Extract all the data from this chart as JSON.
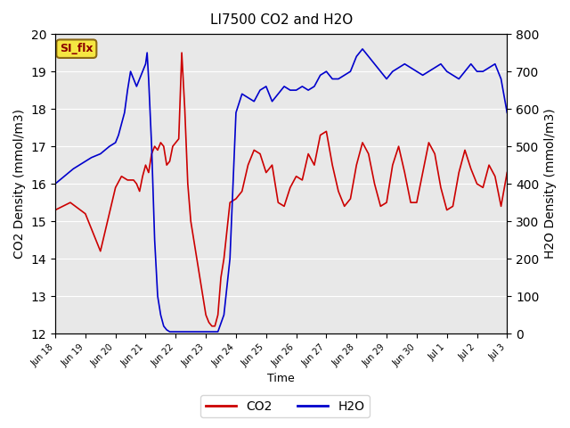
{
  "title": "LI7500 CO2 and H2O",
  "ylabel_left": "CO2 Density (mmol/m3)",
  "ylabel_right": "H2O Density (mmol/m3)",
  "xlabel": "Time",
  "ylim_left": [
    12.0,
    20.0
  ],
  "ylim_right": [
    0,
    800
  ],
  "annotation": "SI_flx",
  "bg_color": "#e8e8e8",
  "co2_color": "#cc0000",
  "h2o_color": "#0000cc",
  "legend_co2": "CO2",
  "legend_h2o": "H2O",
  "co2_data": {
    "x": [
      0,
      0.5,
      1.0,
      1.5,
      2.0,
      2.2,
      2.4,
      2.6,
      2.7,
      2.8,
      2.9,
      3.0,
      3.1,
      3.2,
      3.3,
      3.4,
      3.5,
      3.6,
      3.7,
      3.8,
      3.9,
      4.0,
      4.1,
      4.2,
      4.3,
      4.4,
      4.5,
      4.6,
      4.7,
      4.8,
      4.9,
      5.0,
      5.1,
      5.2,
      5.3,
      5.4,
      5.5,
      5.6,
      5.8,
      6.0,
      6.2,
      6.4,
      6.6,
      6.8,
      7.0,
      7.2,
      7.4,
      7.6,
      7.8,
      8.0,
      8.2,
      8.4,
      8.6,
      8.8,
      9.0,
      9.2,
      9.4,
      9.6,
      9.8,
      10.0,
      10.2,
      10.4,
      10.6,
      10.8,
      11.0,
      11.2,
      11.4,
      11.6,
      11.8,
      12.0,
      12.2,
      12.4,
      12.6,
      12.8,
      13.0,
      13.2,
      13.4,
      13.6,
      13.8,
      14.0,
      14.2,
      14.4,
      14.6,
      14.8,
      15.0
    ],
    "y": [
      15.3,
      15.5,
      15.2,
      14.2,
      15.9,
      16.2,
      16.1,
      16.1,
      16.0,
      15.8,
      16.2,
      16.5,
      16.3,
      16.8,
      17.0,
      16.9,
      17.1,
      17.0,
      16.5,
      16.6,
      17.0,
      17.1,
      17.2,
      19.5,
      18.0,
      16.0,
      15.0,
      14.5,
      14.0,
      13.5,
      13.0,
      12.5,
      12.3,
      12.2,
      12.2,
      12.5,
      13.5,
      14.0,
      15.5,
      15.6,
      15.8,
      16.5,
      16.9,
      16.8,
      16.3,
      16.5,
      15.5,
      15.4,
      15.9,
      16.2,
      16.1,
      16.8,
      16.5,
      17.3,
      17.4,
      16.5,
      15.8,
      15.4,
      15.6,
      16.5,
      17.1,
      16.8,
      16.0,
      15.4,
      15.5,
      16.5,
      17.0,
      16.3,
      15.5,
      15.5,
      16.3,
      17.1,
      16.8,
      15.9,
      15.3,
      15.4,
      16.3,
      16.9,
      16.4,
      16.0,
      15.9,
      16.5,
      16.2,
      15.4,
      16.3
    ]
  },
  "h2o_data": {
    "x": [
      0,
      0.3,
      0.6,
      0.9,
      1.2,
      1.5,
      1.8,
      2.0,
      2.1,
      2.2,
      2.3,
      2.4,
      2.5,
      2.6,
      2.7,
      2.8,
      2.9,
      3.0,
      3.05,
      3.1,
      3.2,
      3.3,
      3.4,
      3.5,
      3.6,
      3.7,
      3.8,
      3.9,
      4.0,
      4.1,
      4.2,
      4.3,
      4.4,
      4.5,
      4.6,
      4.8,
      5.0,
      5.2,
      5.4,
      5.6,
      5.8,
      6.0,
      6.2,
      6.4,
      6.6,
      6.8,
      7.0,
      7.2,
      7.4,
      7.6,
      7.8,
      8.0,
      8.2,
      8.4,
      8.6,
      8.8,
      9.0,
      9.2,
      9.4,
      9.6,
      9.8,
      10.0,
      10.2,
      10.4,
      10.6,
      10.8,
      11.0,
      11.2,
      11.4,
      11.6,
      11.8,
      12.0,
      12.2,
      12.4,
      12.6,
      12.8,
      13.0,
      13.2,
      13.4,
      13.6,
      13.8,
      14.0,
      14.2,
      14.4,
      14.6,
      14.8,
      15.0
    ],
    "y": [
      400,
      420,
      440,
      455,
      470,
      480,
      500,
      510,
      530,
      560,
      590,
      650,
      700,
      680,
      660,
      680,
      700,
      720,
      750,
      680,
      500,
      250,
      100,
      50,
      20,
      10,
      5,
      5,
      5,
      5,
      5,
      5,
      5,
      5,
      5,
      5,
      5,
      5,
      5,
      50,
      200,
      590,
      640,
      630,
      620,
      650,
      660,
      620,
      640,
      660,
      650,
      650,
      660,
      650,
      660,
      690,
      700,
      680,
      680,
      690,
      700,
      740,
      760,
      740,
      720,
      700,
      680,
      700,
      710,
      720,
      710,
      700,
      690,
      700,
      710,
      720,
      700,
      690,
      680,
      700,
      720,
      700,
      700,
      710,
      720,
      680,
      590
    ]
  },
  "xtick_labels": [
    "Jun 18",
    "Jun 19",
    "Jun 20",
    "Jun 21",
    "Jun 22",
    "Jun 23",
    "Jun 24",
    "Jun 25",
    "Jun 26",
    "Jun 27",
    "Jun 28",
    "Jun 29",
    "Jun 30",
    "Jul 1",
    "Jul 2",
    "Jul 3"
  ],
  "xtick_positions": [
    0,
    1,
    2,
    3,
    4,
    5,
    6,
    7,
    8,
    9,
    10,
    11,
    12,
    13,
    14,
    15
  ]
}
